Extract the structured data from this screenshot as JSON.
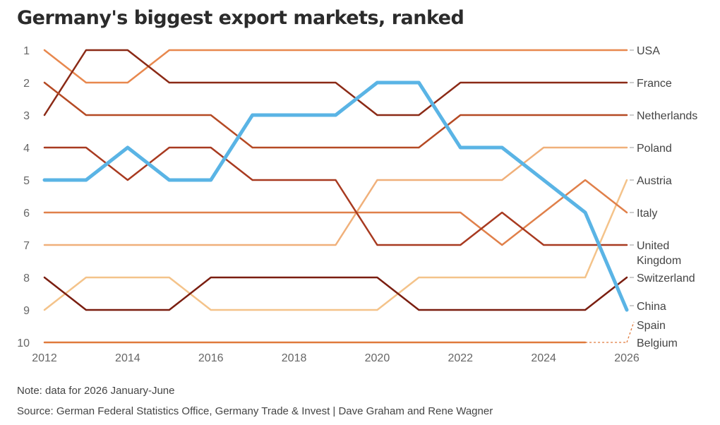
{
  "title": "Germany's biggest export markets, ranked",
  "note": "Note: data for 2026 January-June",
  "source": "Source: German Federal Statistics Office, Germany Trade & Invest | Dave Graham and Rene Wagner",
  "chart_data": {
    "type": "line",
    "x": [
      2012,
      2013,
      2014,
      2015,
      2016,
      2017,
      2018,
      2019,
      2020,
      2021,
      2022,
      2023,
      2024,
      2025,
      2026
    ],
    "x_ticks": [
      "2012",
      "2014",
      "2016",
      "2018",
      "2020",
      "2022",
      "2024",
      "2026"
    ],
    "y_ticks": [
      "1",
      "2",
      "3",
      "4",
      "5",
      "6",
      "7",
      "8",
      "9",
      "10"
    ],
    "ylim": [
      1,
      10
    ],
    "y_reversed": true,
    "grid": false,
    "series": [
      {
        "name": "USA",
        "label_lines": [
          "USA"
        ],
        "color": "#e8884e",
        "width": 2.5,
        "values": [
          1,
          2,
          2,
          1,
          1,
          1,
          1,
          1,
          1,
          1,
          1,
          1,
          1,
          1,
          1
        ]
      },
      {
        "name": "France",
        "label_lines": [
          "France"
        ],
        "color": "#8b2a16",
        "width": 2.5,
        "values": [
          3,
          1,
          1,
          2,
          2,
          2,
          2,
          2,
          3,
          3,
          2,
          2,
          2,
          2,
          2
        ]
      },
      {
        "name": "Netherlands",
        "label_lines": [
          "Netherlands"
        ],
        "color": "#b54a24",
        "width": 2.5,
        "values": [
          2,
          3,
          3,
          3,
          3,
          4,
          4,
          4,
          4,
          4,
          3,
          3,
          3,
          3,
          3
        ]
      },
      {
        "name": "Poland",
        "label_lines": [
          "Poland"
        ],
        "color": "#f0b07a",
        "width": 2.5,
        "values": [
          7,
          7,
          7,
          7,
          7,
          7,
          7,
          7,
          5,
          5,
          5,
          5,
          4,
          4,
          4
        ]
      },
      {
        "name": "Austria",
        "label_lines": [
          "Austria"
        ],
        "color": "#f4c38a",
        "width": 2.5,
        "values": [
          9,
          8,
          8,
          8,
          9,
          9,
          9,
          9,
          9,
          8,
          8,
          8,
          8,
          8,
          5
        ]
      },
      {
        "name": "Italy",
        "label_lines": [
          "Italy"
        ],
        "color": "#e0804a",
        "width": 2.5,
        "values": [
          6,
          6,
          6,
          6,
          6,
          6,
          6,
          6,
          6,
          6,
          6,
          7,
          6,
          5,
          6
        ]
      },
      {
        "name": "United Kingdom",
        "label_lines": [
          "United",
          "Kingdom"
        ],
        "color": "#a83a20",
        "width": 2.5,
        "values": [
          4,
          4,
          5,
          4,
          4,
          5,
          5,
          5,
          7,
          7,
          7,
          6,
          7,
          7,
          7
        ]
      },
      {
        "name": "Switzerland",
        "label_lines": [
          "Switzerland"
        ],
        "color": "#7a1e10",
        "width": 2.5,
        "values": [
          8,
          9,
          9,
          9,
          8,
          8,
          8,
          8,
          8,
          9,
          9,
          9,
          9,
          9,
          8
        ]
      },
      {
        "name": "China",
        "label_lines": [
          "China"
        ],
        "color": "#5ab4e5",
        "width": 5,
        "values": [
          5,
          5,
          4,
          5,
          5,
          3,
          3,
          3,
          2,
          2,
          4,
          4,
          5,
          6,
          9
        ]
      },
      {
        "name": "Spain",
        "label_lines": [
          "Spain"
        ],
        "color": "#e07a3c",
        "width": 2.5,
        "dashed_last": true,
        "values": [
          10,
          10,
          10,
          10,
          10,
          10,
          10,
          10,
          10,
          10,
          10,
          10,
          10,
          10,
          null
        ]
      },
      {
        "name": "Belgium",
        "label_lines": [
          "Belgium"
        ],
        "color": "#e07a3c",
        "width": 2.5,
        "dashed_last": true,
        "values": [
          null,
          null,
          null,
          null,
          null,
          null,
          null,
          null,
          null,
          null,
          null,
          null,
          null,
          null,
          10
        ]
      }
    ]
  }
}
